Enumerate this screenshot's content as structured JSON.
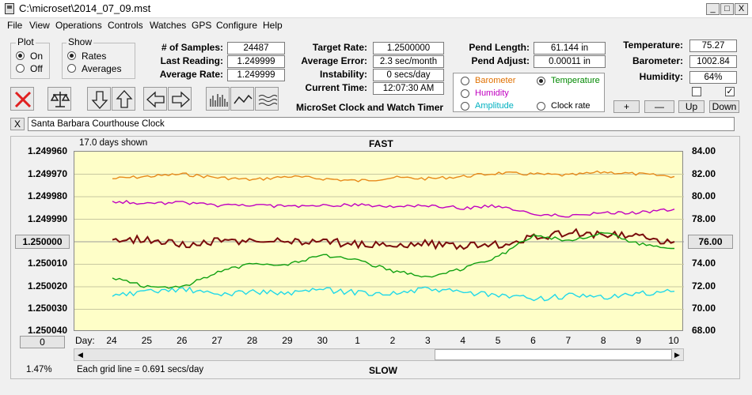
{
  "window": {
    "title": "C:\\microset\\2014_07_09.mst",
    "minimize": "_",
    "maximize": "□",
    "close": "X"
  },
  "menu": [
    "File",
    "View",
    "Operations",
    "Controls",
    "Watches",
    "GPS",
    "Configure",
    "Help"
  ],
  "plot_group": {
    "title": "Plot",
    "on": "On",
    "off": "Off"
  },
  "show_group": {
    "title": "Show",
    "rates": "Rates",
    "averages": "Averages"
  },
  "stats": {
    "samples_label": "# of Samples:",
    "samples": "24487",
    "last_label": "Last Reading:",
    "last": "1.249999",
    "avg_rate_label": "Average Rate:",
    "avg_rate": "1.249999",
    "target_label": "Target Rate:",
    "target": "1.2500000",
    "avg_err_label": "Average Error:",
    "avg_err": "2.3 sec/month",
    "instab_label": "Instability:",
    "instab": "0 secs/day",
    "time_label": "Current Time:",
    "time": "12:07:30 AM",
    "pend_len_label": "Pend Length:",
    "pend_len": "61.144 in",
    "pend_adj_label": "Pend Adjust:",
    "pend_adj": "0.00011 in",
    "temp_label": "Temperature:",
    "temp": "75.27",
    "baro_label": "Barometer:",
    "baro": "1002.84",
    "hum_label": "Humidity:",
    "hum": "64%"
  },
  "app_caption": "MicroSet Clock and Watch Timer",
  "sensor_select": {
    "barometer": "Barometer",
    "temperature": "Temperature",
    "humidity": "Humidity",
    "amplitude": "Amplitude",
    "clock_rate": "Clock rate",
    "colors": {
      "barometer": "#e07000",
      "temperature": "#008800",
      "humidity": "#c000c0",
      "amplitude": "#00b0c0",
      "clock_rate": "#000000"
    }
  },
  "small_buttons": {
    "plus": "+",
    "minus": "—",
    "up": "Up",
    "down": "Down"
  },
  "checks": {
    "left": "",
    "right": "✓"
  },
  "watch": {
    "close": "X",
    "name": "Santa Barbara Courthouse Clock"
  },
  "chart_header": {
    "days_shown": "17.0 days shown",
    "fast": "FAST",
    "slow": "SLOW",
    "grid_note": "Each grid line = 0.691 secs/day",
    "pct": "1.47%",
    "day_label": "Day:"
  },
  "chart_controls": {
    "center_value": "1.250000",
    "right_value": "76.00",
    "bottom_value": "0"
  },
  "chart_data": {
    "type": "line",
    "y_left_ticks": [
      "1.249960",
      "1.249970",
      "1.249980",
      "1.249990",
      "1.250000",
      "1.250010",
      "1.250020",
      "1.250030",
      "1.250040"
    ],
    "y_right_ticks": [
      "84.00",
      "82.00",
      "80.00",
      "78.00",
      "76.00",
      "74.00",
      "72.00",
      "70.00",
      "68.00"
    ],
    "x_ticks": [
      "24",
      "25",
      "26",
      "27",
      "28",
      "29",
      "30",
      "1",
      "2",
      "3",
      "4",
      "5",
      "6",
      "7",
      "8",
      "9",
      "10"
    ],
    "series": [
      {
        "name": "Barometer",
        "color": "#e78a1a",
        "values": [
          81.6,
          81.8,
          82.0,
          81.7,
          81.5,
          81.8,
          81.6,
          81.4,
          81.7,
          81.6,
          81.8,
          82.1,
          82.0,
          81.9,
          82.2,
          82.0,
          81.8
        ]
      },
      {
        "name": "Humidity",
        "color": "#c000c0",
        "values": [
          79.6,
          79.4,
          79.5,
          79.2,
          79.3,
          79.1,
          79.2,
          79.3,
          79.1,
          79.2,
          79.0,
          79.2,
          78.5,
          78.3,
          78.6,
          78.6,
          78.9
        ]
      },
      {
        "name": "Clock rate",
        "color": "#7a0c0c",
        "values": [
          1.249999,
          1.249999,
          1.250001,
          1.25,
          1.25,
          1.25,
          1.25,
          1.250001,
          1.250001,
          1.250001,
          1.250002,
          1.250001,
          1.249998,
          1.249996,
          1.249997,
          1.249998,
          1.25
        ]
      },
      {
        "name": "Temperature",
        "color": "#10a010",
        "values": [
          72.8,
          72.0,
          72.0,
          73.3,
          74.1,
          74.0,
          74.8,
          74.3,
          73.4,
          72.9,
          73.6,
          74.7,
          76.6,
          76.1,
          76.8,
          75.8,
          75.4
        ]
      },
      {
        "name": "Amplitude",
        "color": "#20d8e8",
        "values": [
          71.2,
          71.5,
          71.8,
          71.3,
          71.6,
          71.4,
          71.7,
          71.5,
          71.4,
          71.8,
          71.5,
          71.2,
          70.9,
          71.2,
          71.0,
          71.4,
          71.6
        ]
      }
    ]
  }
}
